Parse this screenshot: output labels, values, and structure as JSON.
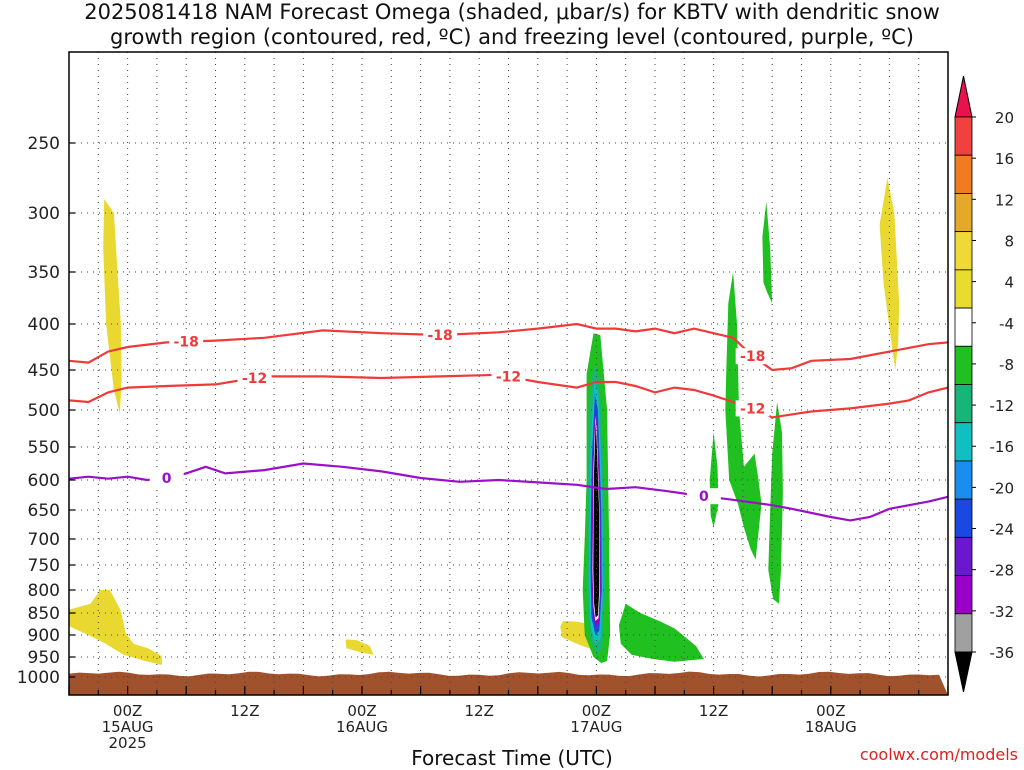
{
  "title_line1": "2025081418 NAM Forecast Omega (shaded, μbar/s) for KBTV with dendritic snow",
  "title_line2": "growth region (contoured, red, ºC) and freezing level (contoured, purple, ºC)",
  "credit": "coolwx.com/models",
  "chart_data": {
    "type": "heatmap",
    "xlabel": "Forecast Time (UTC)",
    "ylabel": "",
    "x_unit": "hours since 2025081418",
    "xlim": [
      0,
      90
    ],
    "ylim": [
      1000,
      200
    ],
    "y_scale": "log-pressure",
    "grid": true,
    "x_ticks": [
      {
        "x": 6,
        "labels": [
          "00Z",
          "15AUG",
          "2025"
        ]
      },
      {
        "x": 18,
        "labels": [
          "12Z"
        ]
      },
      {
        "x": 30,
        "labels": [
          "00Z",
          "16AUG"
        ]
      },
      {
        "x": 42,
        "labels": [
          "12Z"
        ]
      },
      {
        "x": 54,
        "labels": [
          "00Z",
          "17AUG"
        ]
      },
      {
        "x": 66,
        "labels": [
          "12Z"
        ]
      },
      {
        "x": 78,
        "labels": [
          "00Z",
          "18AUG"
        ]
      }
    ],
    "y_ticks": [
      250,
      300,
      350,
      400,
      450,
      500,
      550,
      600,
      650,
      700,
      750,
      800,
      850,
      900,
      950,
      1000
    ],
    "colorbar": {
      "labels": [
        "20",
        "16",
        "12",
        "8",
        "4",
        "-4",
        "-8",
        "-12",
        "-16",
        "-20",
        "-24",
        "-28",
        "-32",
        "-36"
      ],
      "colors": [
        "#e8124d",
        "#f04040",
        "#f07b20",
        "#e4a92a",
        "#f0d838",
        "#e8dc2e",
        "#ffffff",
        "#20c020",
        "#18b478",
        "#10c0c0",
        "#1a8ef0",
        "#1a48e0",
        "#6a18d0",
        "#9a00c8",
        "#a0a0a0",
        "#000000"
      ]
    },
    "series": [
      {
        "name": "-18",
        "color": "#f03a3a",
        "points": [
          [
            0,
            440
          ],
          [
            2,
            442
          ],
          [
            4,
            430
          ],
          [
            6,
            425
          ],
          [
            10,
            420
          ],
          [
            15,
            418
          ],
          [
            20,
            415
          ],
          [
            26,
            407
          ],
          [
            32,
            410
          ],
          [
            38,
            412
          ],
          [
            44,
            409
          ],
          [
            48,
            405
          ],
          [
            52,
            400
          ],
          [
            54,
            405
          ],
          [
            56,
            405
          ],
          [
            58,
            408
          ],
          [
            60,
            405
          ],
          [
            62,
            410
          ],
          [
            64,
            405
          ],
          [
            68,
            415
          ],
          [
            70,
            435
          ],
          [
            72,
            450
          ],
          [
            74,
            448
          ],
          [
            76,
            440
          ],
          [
            80,
            438
          ],
          [
            84,
            430
          ],
          [
            88,
            422
          ],
          [
            90,
            420
          ]
        ]
      },
      {
        "name": "-12",
        "color": "#f03a3a",
        "points": [
          [
            0,
            488
          ],
          [
            2,
            490
          ],
          [
            4,
            478
          ],
          [
            6,
            472
          ],
          [
            10,
            470
          ],
          [
            15,
            468
          ],
          [
            20,
            458
          ],
          [
            26,
            458
          ],
          [
            32,
            460
          ],
          [
            38,
            458
          ],
          [
            44,
            456
          ],
          [
            48,
            465
          ],
          [
            52,
            472
          ],
          [
            54,
            465
          ],
          [
            56,
            465
          ],
          [
            58,
            470
          ],
          [
            60,
            478
          ],
          [
            62,
            472
          ],
          [
            64,
            475
          ],
          [
            66,
            482
          ],
          [
            68,
            490
          ],
          [
            70,
            498
          ],
          [
            72,
            510
          ],
          [
            74,
            506
          ],
          [
            76,
            502
          ],
          [
            80,
            498
          ],
          [
            84,
            492
          ],
          [
            86,
            488
          ],
          [
            88,
            478
          ],
          [
            90,
            472
          ]
        ]
      },
      {
        "name": "0",
        "color": "#9a10c8",
        "points": [
          [
            0,
            598
          ],
          [
            2,
            595
          ],
          [
            4,
            598
          ],
          [
            6,
            595
          ],
          [
            8,
            600
          ],
          [
            10,
            597
          ],
          [
            12,
            590
          ],
          [
            14,
            580
          ],
          [
            16,
            590
          ],
          [
            20,
            585
          ],
          [
            24,
            575
          ],
          [
            28,
            580
          ],
          [
            32,
            587
          ],
          [
            36,
            597
          ],
          [
            40,
            603
          ],
          [
            44,
            600
          ],
          [
            48,
            604
          ],
          [
            52,
            608
          ],
          [
            55,
            615
          ],
          [
            58,
            612
          ],
          [
            61,
            618
          ],
          [
            64,
            625
          ],
          [
            68,
            633
          ],
          [
            72,
            642
          ],
          [
            74,
            648
          ],
          [
            78,
            662
          ],
          [
            80,
            668
          ],
          [
            82,
            662
          ],
          [
            84,
            648
          ],
          [
            88,
            636
          ],
          [
            90,
            628
          ]
        ]
      }
    ],
    "regions": [
      {
        "color": "#e8d830",
        "points": [
          [
            3.6,
            290
          ],
          [
            4.6,
            300
          ],
          [
            5.3,
            400
          ],
          [
            5.4,
            460
          ],
          [
            5.2,
            505
          ],
          [
            4.6,
            475
          ],
          [
            3.8,
            400
          ],
          [
            3.5,
            330
          ]
        ]
      },
      {
        "color": "#e8d830",
        "points": [
          [
            0,
            843
          ],
          [
            2.2,
            830
          ],
          [
            3.2,
            800
          ],
          [
            4.2,
            800
          ],
          [
            5.3,
            845
          ],
          [
            5.8,
            895
          ],
          [
            6.6,
            920
          ],
          [
            8.1,
            930
          ],
          [
            9.5,
            948
          ],
          [
            9.5,
            970
          ],
          [
            7.8,
            960
          ],
          [
            5.6,
            945
          ],
          [
            3.6,
            918
          ],
          [
            2,
            900
          ],
          [
            0,
            880
          ]
        ]
      },
      {
        "color": "#e8d830",
        "points": [
          [
            28.3,
            910
          ],
          [
            29.5,
            912
          ],
          [
            30.8,
            925
          ],
          [
            31.2,
            945
          ],
          [
            30,
            940
          ],
          [
            28.4,
            930
          ]
        ]
      },
      {
        "color": "#e8d830",
        "points": [
          [
            50.6,
            868
          ],
          [
            52.1,
            870
          ],
          [
            53.2,
            875
          ],
          [
            54.1,
            900
          ],
          [
            54.8,
            945
          ],
          [
            53.8,
            935
          ],
          [
            52,
            920
          ],
          [
            50.5,
            905
          ],
          [
            50.3,
            880
          ]
        ]
      },
      {
        "color": "#e8d830",
        "points": [
          [
            83.8,
            275
          ],
          [
            84.5,
            300
          ],
          [
            85,
            380
          ],
          [
            84.9,
            420
          ],
          [
            84.6,
            450
          ],
          [
            84.2,
            420
          ],
          [
            83.4,
            360
          ],
          [
            83,
            310
          ]
        ]
      },
      {
        "color": "#20c020",
        "points": [
          [
            53,
            455
          ],
          [
            53.7,
            410
          ],
          [
            54.4,
            412
          ],
          [
            55.1,
            500
          ],
          [
            55.3,
            700
          ],
          [
            55.4,
            900
          ],
          [
            55.1,
            960
          ],
          [
            54.5,
            965
          ],
          [
            53.7,
            950
          ],
          [
            52.8,
            900
          ],
          [
            52.6,
            800
          ],
          [
            52.8,
            700
          ],
          [
            53,
            600
          ]
        ]
      },
      {
        "color": "#20c020",
        "points": [
          [
            56.3,
            878
          ],
          [
            57,
            830
          ],
          [
            58.5,
            850
          ],
          [
            60.6,
            870
          ],
          [
            62,
            885
          ],
          [
            64.2,
            925
          ],
          [
            65,
            955
          ],
          [
            62,
            962
          ],
          [
            59.8,
            955
          ],
          [
            57.6,
            945
          ],
          [
            56.5,
            920
          ]
        ]
      },
      {
        "color": "#20c020",
        "points": [
          [
            65.6,
            600
          ],
          [
            66,
            530
          ],
          [
            66.4,
            580
          ],
          [
            66.5,
            640
          ],
          [
            66,
            680
          ],
          [
            65.7,
            660
          ]
        ]
      },
      {
        "color": "#20c020",
        "points": [
          [
            67.5,
            380
          ],
          [
            68,
            350
          ],
          [
            68.4,
            400
          ],
          [
            68.6,
            500
          ],
          [
            69.1,
            580
          ],
          [
            70.2,
            560
          ],
          [
            70.6,
            600
          ],
          [
            70.9,
            640
          ],
          [
            70.3,
            740
          ],
          [
            69.8,
            720
          ],
          [
            69.1,
            680
          ],
          [
            68.5,
            640
          ],
          [
            67.6,
            600
          ],
          [
            67.2,
            500
          ],
          [
            67.3,
            450
          ]
        ]
      },
      {
        "color": "#20c020",
        "points": [
          [
            71,
            320
          ],
          [
            71.4,
            292
          ],
          [
            71.8,
            330
          ],
          [
            72,
            380
          ],
          [
            71.5,
            370
          ],
          [
            71.1,
            360
          ]
        ]
      },
      {
        "color": "#20c020",
        "points": [
          [
            72,
            560
          ],
          [
            72.5,
            490
          ],
          [
            73,
            530
          ],
          [
            73.1,
            620
          ],
          [
            72.9,
            760
          ],
          [
            72.7,
            830
          ],
          [
            72.1,
            820
          ],
          [
            71.6,
            760
          ],
          [
            71.8,
            650
          ]
        ]
      },
      {
        "color": "#18b478",
        "points": [
          [
            53.2,
            500
          ],
          [
            53.7,
            445
          ],
          [
            54.3,
            460
          ],
          [
            54.8,
            600
          ],
          [
            54.9,
            800
          ],
          [
            54.6,
            930
          ],
          [
            54,
            945
          ],
          [
            53.3,
            900
          ],
          [
            53,
            800
          ],
          [
            53.1,
            650
          ]
        ]
      },
      {
        "color": "#10c0c0",
        "points": [
          [
            53.4,
            550
          ],
          [
            53.8,
            462
          ],
          [
            54.2,
            480
          ],
          [
            54.6,
            620
          ],
          [
            54.7,
            800
          ],
          [
            54.4,
            910
          ],
          [
            53.9,
            920
          ],
          [
            53.4,
            880
          ],
          [
            53.2,
            780
          ],
          [
            53.3,
            650
          ]
        ]
      },
      {
        "color": "#1a48e0",
        "points": [
          [
            53.55,
            560
          ],
          [
            53.85,
            480
          ],
          [
            54.15,
            500
          ],
          [
            54.5,
            650
          ],
          [
            54.55,
            800
          ],
          [
            54.3,
            890
          ],
          [
            53.9,
            900
          ],
          [
            53.5,
            860
          ],
          [
            53.4,
            760
          ],
          [
            53.45,
            650
          ]
        ]
      },
      {
        "color": "#9a00c8",
        "points": [
          [
            53.6,
            570
          ],
          [
            53.88,
            500
          ],
          [
            54.1,
            520
          ],
          [
            54.4,
            650
          ],
          [
            54.45,
            800
          ],
          [
            54.25,
            875
          ],
          [
            53.9,
            880
          ],
          [
            53.6,
            845
          ],
          [
            53.5,
            760
          ],
          [
            53.55,
            660
          ]
        ]
      },
      {
        "color": "#ffffff",
        "points": [
          [
            53.7,
            580
          ],
          [
            53.9,
            508
          ],
          [
            54.05,
            530
          ],
          [
            54.32,
            650
          ],
          [
            54.37,
            800
          ],
          [
            54.2,
            862
          ],
          [
            53.9,
            868
          ],
          [
            53.7,
            835
          ],
          [
            53.6,
            760
          ],
          [
            53.65,
            670
          ]
        ]
      },
      {
        "color": "#000000",
        "points": [
          [
            53.75,
            590
          ],
          [
            53.92,
            515
          ],
          [
            54.02,
            540
          ],
          [
            54.28,
            650
          ],
          [
            54.3,
            800
          ],
          [
            54.15,
            855
          ],
          [
            53.92,
            860
          ],
          [
            53.75,
            828
          ],
          [
            53.68,
            760
          ],
          [
            53.7,
            680
          ]
        ]
      }
    ]
  }
}
